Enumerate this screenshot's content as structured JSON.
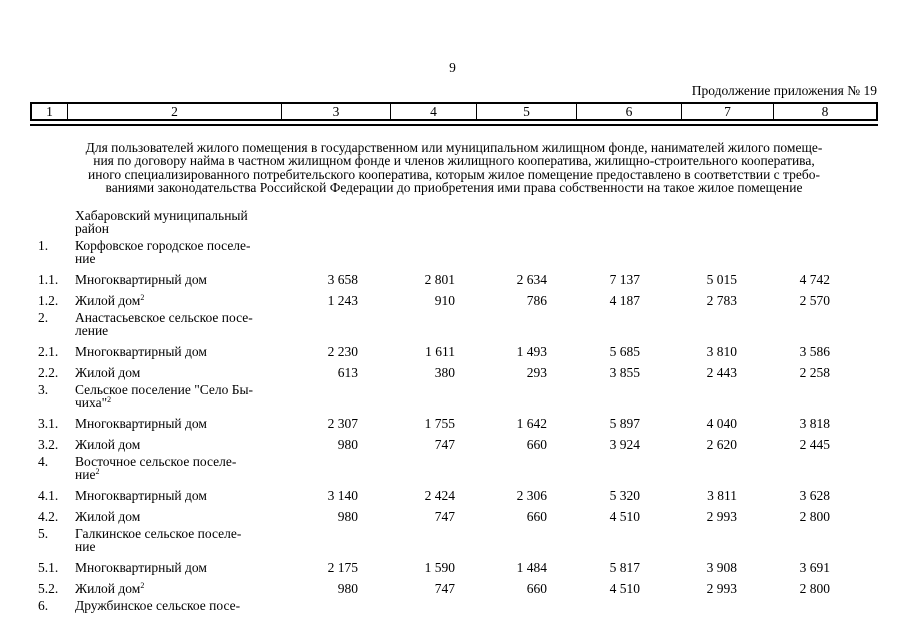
{
  "page": {
    "number": "9",
    "continuation": "Продолжение приложения № 19"
  },
  "header_row": [
    "1",
    "2",
    "3",
    "4",
    "5",
    "6",
    "7",
    "8"
  ],
  "intro": {
    "lines": [
      "Для пользователей жилого помещения в государственном или муниципальном жилищном фонде, нанимателей жилого помеще-",
      "ния по договору найма в частном жилищном фонде и членов жилищного кооператива, жилищно-строительного кооператива,",
      "иного специализированного потребительского кооператива, которым жилое помещение предоставлено в соответствии с требо-",
      "ваниями законодательства Российской Федерации до приобретения ими права собственности на такое жилое помещение"
    ]
  },
  "table": {
    "rows": [
      {
        "num": "",
        "lines": [
          "Хабаровский муниципальный",
          "район"
        ],
        "sup": "",
        "type": "section",
        "values": [
          "",
          "",
          "",
          "",
          "",
          ""
        ]
      },
      {
        "num": "1.",
        "lines": [
          "Корфовское городское поселе-",
          "ние"
        ],
        "sup": "",
        "type": "section",
        "values": [
          "",
          "",
          "",
          "",
          "",
          ""
        ]
      },
      {
        "num": "1.1.",
        "lines": [
          "Многоквартирный дом"
        ],
        "sup": "",
        "type": "item",
        "values": [
          "3 658",
          "2 801",
          "2 634",
          "7 137",
          "5 015",
          "4 742"
        ]
      },
      {
        "num": "1.2.",
        "lines": [
          "Жилой дом"
        ],
        "sup": "2",
        "type": "item",
        "values": [
          "1 243",
          "910",
          "786",
          "4 187",
          "2 783",
          "2 570"
        ]
      },
      {
        "num": "2.",
        "lines": [
          "Анастасьевское сельское посе-",
          "ление"
        ],
        "sup": "",
        "type": "section",
        "values": [
          "",
          "",
          "",
          "",
          "",
          ""
        ]
      },
      {
        "num": "2.1.",
        "lines": [
          "Многоквартирный дом"
        ],
        "sup": "",
        "type": "item",
        "values": [
          "2 230",
          "1 611",
          "1 493",
          "5 685",
          "3 810",
          "3 586"
        ]
      },
      {
        "num": "2.2.",
        "lines": [
          "Жилой дом"
        ],
        "sup": "",
        "type": "item",
        "values": [
          "613",
          "380",
          "293",
          "3 855",
          "2 443",
          "2 258"
        ]
      },
      {
        "num": "3.",
        "lines": [
          "Сельское поселение \"Село Бы-",
          "чиха\""
        ],
        "sup": "2",
        "type": "section",
        "values": [
          "",
          "",
          "",
          "",
          "",
          ""
        ]
      },
      {
        "num": "3.1.",
        "lines": [
          "Многоквартирный дом"
        ],
        "sup": "",
        "type": "item",
        "values": [
          "2 307",
          "1 755",
          "1 642",
          "5 897",
          "4 040",
          "3 818"
        ]
      },
      {
        "num": "3.2.",
        "lines": [
          "Жилой дом"
        ],
        "sup": "",
        "type": "item",
        "values": [
          "980",
          "747",
          "660",
          "3 924",
          "2 620",
          "2 445"
        ]
      },
      {
        "num": "4.",
        "lines": [
          "Восточное сельское поселе-",
          "ние"
        ],
        "sup": "2",
        "type": "section",
        "values": [
          "",
          "",
          "",
          "",
          "",
          ""
        ]
      },
      {
        "num": "4.1.",
        "lines": [
          "Многоквартирный дом"
        ],
        "sup": "",
        "type": "item",
        "values": [
          "3 140",
          "2 424",
          "2 306",
          "5 320",
          "3 811",
          "3 628"
        ]
      },
      {
        "num": "4.2.",
        "lines": [
          "Жилой дом"
        ],
        "sup": "",
        "type": "item",
        "values": [
          "980",
          "747",
          "660",
          "4 510",
          "2 993",
          "2 800"
        ]
      },
      {
        "num": "5.",
        "lines": [
          "Галкинское сельское поселе-",
          "ние"
        ],
        "sup": "",
        "type": "section",
        "values": [
          "",
          "",
          "",
          "",
          "",
          ""
        ]
      },
      {
        "num": "5.1.",
        "lines": [
          "Многоквартирный дом"
        ],
        "sup": "",
        "type": "item",
        "values": [
          "2 175",
          "1 590",
          "1 484",
          "5 817",
          "3 908",
          "3 691"
        ]
      },
      {
        "num": "5.2.",
        "lines": [
          "Жилой дом"
        ],
        "sup": "2",
        "type": "item",
        "values": [
          "980",
          "747",
          "660",
          "4 510",
          "2 993",
          "2 800"
        ]
      },
      {
        "num": "6.",
        "lines": [
          "Дружбинское сельское посе-"
        ],
        "sup": "",
        "type": "section",
        "values": [
          "",
          "",
          "",
          "",
          "",
          ""
        ]
      }
    ]
  }
}
